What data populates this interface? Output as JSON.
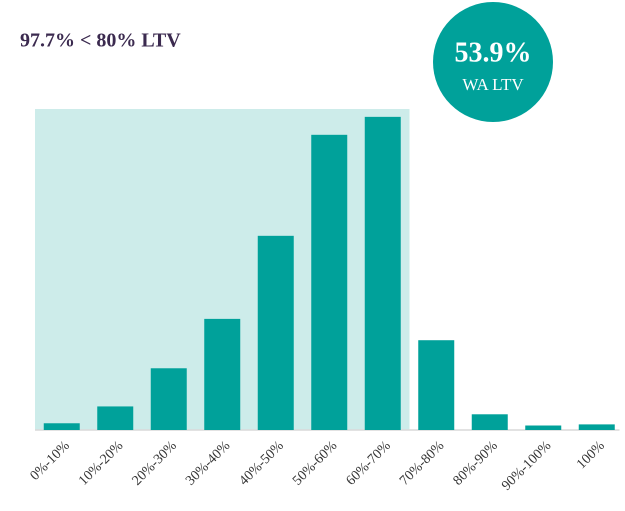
{
  "chart_data": {
    "type": "bar",
    "title": "97.7% < 80% LTV",
    "callout": {
      "value": "53.9%",
      "label": "WA LTV"
    },
    "categories": [
      "0%-10%",
      "10%-20%",
      "20%-30%",
      "30%-40%",
      "40%-50%",
      "50%-60%",
      "60%-70%",
      "70%-80%",
      "80%-90%",
      "90%-100%",
      "100%"
    ],
    "values": [
      0.6,
      2.1,
      5.5,
      9.9,
      17.3,
      26.3,
      27.9,
      8.0,
      1.4,
      0.4,
      0.5
    ],
    "color": "#00a19a",
    "highlight_color": "#cdecea",
    "highlight_count": 7,
    "ylim": [
      0,
      28.6
    ]
  }
}
